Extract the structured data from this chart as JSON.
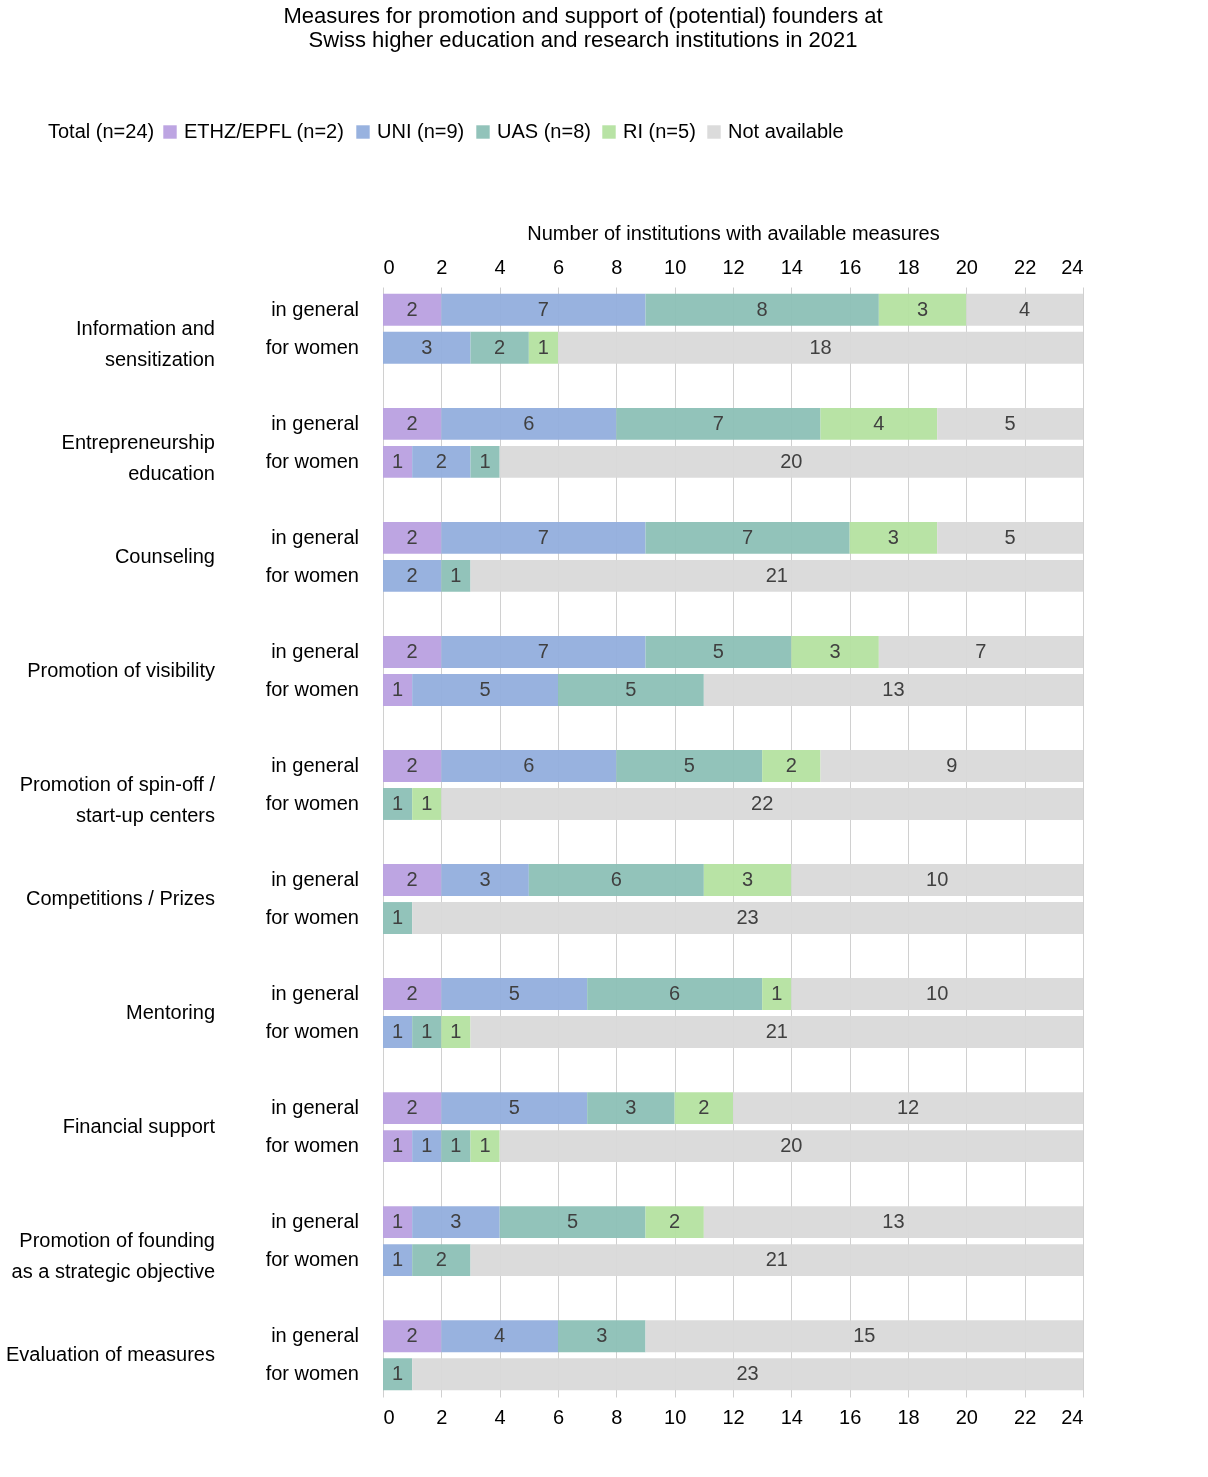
{
  "chart_data": {
    "type": "bar",
    "orientation": "horizontal",
    "stacked": true,
    "title": "Measures for promotion and support of (potential) founders at Swiss higher education and research institutions in 2021",
    "x2label": "Number of institutions with available measures",
    "legend_title": "Total (n=24)",
    "categories": [
      "in general",
      "for women",
      "in general",
      "for women",
      "in general",
      "for women",
      "in general",
      "for women",
      "in general",
      "for women",
      "in general",
      "for women",
      "in general",
      "for women",
      "in general",
      "for women",
      "in general",
      "for women",
      "in general",
      "for women"
    ],
    "annotations": [
      "Information and sensitization",
      "Entrepreneurship education",
      "Counseling",
      "Promotion of visibility",
      "Promotion of spin-off / start-up centers",
      "Competitions / Prizes",
      "Mentoring",
      "Financial support",
      "Promotion of founding as a strategic objective",
      "Evaluation of measures"
    ],
    "series": [
      {
        "name": "ETHZ/EPFL (n=2)",
        "color": "#b9a0e0",
        "values": [
          2,
          null,
          2,
          1,
          2,
          null,
          2,
          1,
          2,
          null,
          2,
          null,
          2,
          null,
          2,
          1,
          1,
          null,
          2,
          null
        ]
      },
      {
        "name": "UNI (n=9)",
        "color": "#92aedd",
        "values": [
          7,
          3,
          6,
          2,
          7,
          2,
          7,
          5,
          6,
          null,
          3,
          null,
          5,
          1,
          5,
          1,
          3,
          1,
          4,
          null
        ]
      },
      {
        "name": "UAS (n=8)",
        "color": "#8cc0b6",
        "values": [
          8,
          2,
          7,
          1,
          7,
          1,
          5,
          5,
          5,
          1,
          6,
          1,
          6,
          1,
          3,
          1,
          5,
          2,
          3,
          1
        ]
      },
      {
        "name": "RI (n=5)",
        "color": "#b4e2a0",
        "values": [
          3,
          1,
          4,
          null,
          3,
          null,
          3,
          null,
          2,
          1,
          3,
          null,
          1,
          1,
          2,
          1,
          2,
          null,
          null,
          null
        ]
      },
      {
        "name": "Not available",
        "color": "#d9d9d9",
        "values": [
          4,
          18,
          5,
          20,
          5,
          21,
          7,
          13,
          9,
          22,
          10,
          23,
          10,
          21,
          12,
          20,
          13,
          21,
          15,
          23
        ]
      }
    ],
    "xlim": [
      0,
      24
    ],
    "xticks": [
      0,
      2,
      4,
      6,
      8,
      10,
      12,
      14,
      16,
      18,
      20,
      22,
      24
    ],
    "x2lim": [
      0,
      24
    ],
    "x2ticks": [
      0,
      2,
      4,
      6,
      8,
      10,
      12,
      14,
      16,
      18,
      20,
      22,
      24
    ],
    "grid": "x",
    "legend": "top",
    "data_labels": true
  }
}
